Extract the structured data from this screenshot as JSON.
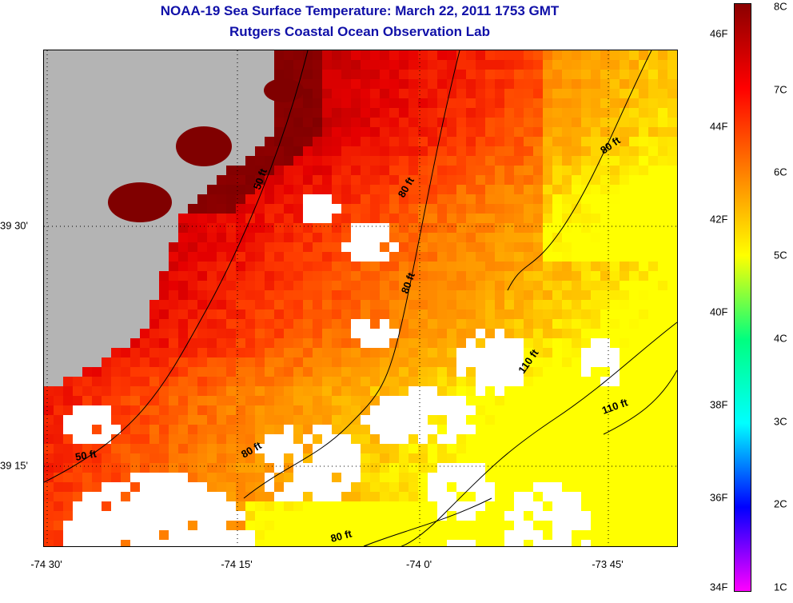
{
  "header": {
    "title": "NOAA-19 Sea Surface Temperature:  March 22, 2011 1753 GMT",
    "subtitle": "Rutgers Coastal Ocean Observation Lab"
  },
  "axes": {
    "x_ticks": [
      {
        "lon": -74.5,
        "label": "-74 30'"
      },
      {
        "lon": -74.25,
        "label": "-74 15'"
      },
      {
        "lon": -74.0,
        "label": "-74 0'"
      },
      {
        "lon": -73.75,
        "label": "-73 45'"
      }
    ],
    "y_ticks": [
      {
        "lat": 39.5,
        "label": "39 30'"
      },
      {
        "lat": 39.25,
        "label": "39 15'"
      }
    ],
    "lon_range": [
      -74.52,
      -73.98
    ],
    "lat_range": [
      39.08,
      39.67
    ]
  },
  "colorbar": {
    "fahrenheit_labels": [
      "46F",
      "44F",
      "42F",
      "40F",
      "38F",
      "36F",
      "34F"
    ],
    "celsius_labels": [
      "8C",
      "7C",
      "6C",
      "5C",
      "4C",
      "3C",
      "2C",
      "1C"
    ],
    "colors": [
      "#8b0000",
      "#ff0000",
      "#ff7f00",
      "#ffff00",
      "#00ff7f",
      "#00ffff",
      "#0000ff",
      "#ff00ff"
    ]
  },
  "contour_labels": [
    {
      "text": "50 ft"
    },
    {
      "text": "80 ft"
    },
    {
      "text": "80 ft"
    },
    {
      "text": "80 ft"
    },
    {
      "text": "80 ft"
    },
    {
      "text": "80 ft"
    },
    {
      "text": "110 ft"
    },
    {
      "text": "110 ft"
    },
    {
      "text": "50 ft"
    }
  ],
  "colors": {
    "land": "#b4b4b4",
    "no_data": "#ffffff",
    "title": "#1010a8"
  }
}
